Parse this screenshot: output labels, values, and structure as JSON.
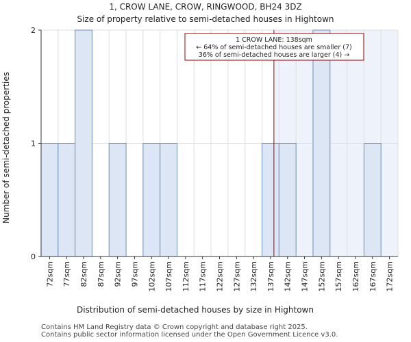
{
  "chart_data": {
    "type": "bar",
    "title": "1, CROW LANE, CROW, RINGWOOD, BH24 3DZ",
    "subtitle": "Size of property relative to semi-detached houses in Hightown",
    "xlabel": "Distribution of semi-detached houses by size in Hightown",
    "ylabel": "Number of semi-detached properties",
    "categories": [
      "72sqm",
      "77sqm",
      "82sqm",
      "87sqm",
      "92sqm",
      "97sqm",
      "102sqm",
      "107sqm",
      "112sqm",
      "117sqm",
      "122sqm",
      "127sqm",
      "132sqm",
      "137sqm",
      "142sqm",
      "147sqm",
      "152sqm",
      "157sqm",
      "162sqm",
      "167sqm",
      "172sqm"
    ],
    "values": [
      1,
      1,
      2,
      0,
      1,
      0,
      1,
      1,
      0,
      0,
      0,
      0,
      0,
      1,
      1,
      0,
      2,
      0,
      0,
      1,
      0
    ],
    "bin_start": 69.5,
    "bin_width": 5,
    "ylim": [
      0,
      2
    ],
    "yticks": [
      "0",
      "1",
      "2"
    ],
    "property_size": 138,
    "grid": true,
    "bar_color": "#dce6f4",
    "bar_edge_color": "#6f8fbf",
    "highlight_color": "#eef3fb",
    "marker_color": "#990000",
    "annotation": {
      "line1": "1 CROW LANE: 138sqm",
      "line2": "← 64% of semi-detached houses are smaller (7)",
      "line3": "36% of semi-detached houses are larger (4) →"
    }
  },
  "footer": {
    "line1": "Contains HM Land Registry data © Crown copyright and database right 2025.",
    "line2": "Contains public sector information licensed under the Open Government Licence v3.0."
  }
}
